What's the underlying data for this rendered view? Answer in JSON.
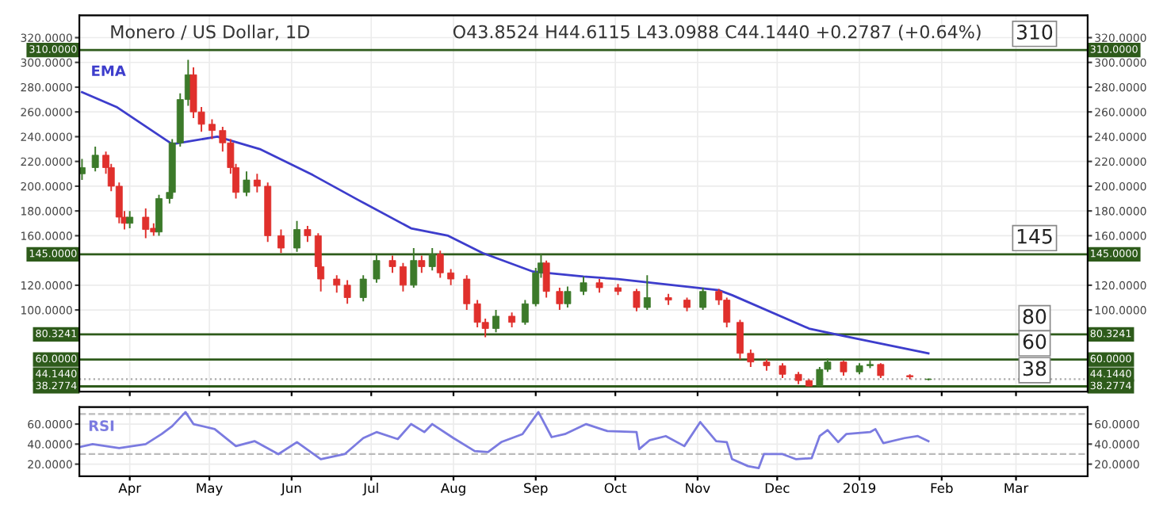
{
  "chart_data": [
    {
      "type": "candlestick",
      "title": "Monero / US Dollar, 1D",
      "subtitle": "O43.8524 H44.6115 L43.0988 C44.1440 +0.2787 (+0.64%)",
      "x": [
        "2018-03-14",
        "2018-03-19",
        "2018-03-23",
        "2018-03-25",
        "2018-03-28",
        "2018-03-30",
        "2018-04-01",
        "2018-04-07",
        "2018-04-10",
        "2018-04-12",
        "2018-04-16",
        "2018-04-17",
        "2018-04-20",
        "2018-04-23",
        "2018-04-25",
        "2018-04-28",
        "2018-05-02",
        "2018-05-06",
        "2018-05-09",
        "2018-05-11",
        "2018-05-15",
        "2018-05-19",
        "2018-05-23",
        "2018-05-28",
        "2018-06-03",
        "2018-06-07",
        "2018-06-11",
        "2018-06-12",
        "2018-06-18",
        "2018-06-22",
        "2018-06-28",
        "2018-07-03",
        "2018-07-09",
        "2018-07-13",
        "2018-07-17",
        "2018-07-20",
        "2018-07-24",
        "2018-07-27",
        "2018-07-31",
        "2018-08-06",
        "2018-08-10",
        "2018-08-13",
        "2018-08-17",
        "2018-08-23",
        "2018-08-28",
        "2018-09-01",
        "2018-09-03",
        "2018-09-05",
        "2018-09-10",
        "2018-09-13",
        "2018-09-19",
        "2018-09-25",
        "2018-10-02",
        "2018-10-09",
        "2018-10-13",
        "2018-10-21",
        "2018-10-28",
        "2018-11-03",
        "2018-11-09",
        "2018-11-12",
        "2018-11-17",
        "2018-11-21",
        "2018-11-27",
        "2018-12-03",
        "2018-12-09",
        "2018-12-13",
        "2018-12-17",
        "2018-12-20",
        "2018-12-26",
        "2019-01-01",
        "2019-01-05",
        "2019-01-09",
        "2019-01-20",
        "2019-01-27"
      ],
      "ohlc": [
        [
          210,
          222,
          205,
          215
        ],
        [
          215,
          232,
          212,
          225
        ],
        [
          225,
          228,
          210,
          215
        ],
        [
          215,
          218,
          196,
          200
        ],
        [
          200,
          203,
          170,
          175
        ],
        [
          175,
          180,
          165,
          170
        ],
        [
          170,
          180,
          166,
          175
        ],
        [
          175,
          182,
          158,
          165
        ],
        [
          166,
          170,
          160,
          163
        ],
        [
          163,
          193,
          160,
          190
        ],
        [
          190,
          200,
          186,
          195
        ],
        [
          195,
          238,
          192,
          235
        ],
        [
          235,
          275,
          232,
          270
        ],
        [
          270,
          302,
          265,
          290
        ],
        [
          290,
          296,
          255,
          260
        ],
        [
          260,
          264,
          244,
          250
        ],
        [
          250,
          254,
          238,
          245
        ],
        [
          245,
          248,
          228,
          235
        ],
        [
          235,
          238,
          210,
          215
        ],
        [
          215,
          218,
          190,
          195
        ],
        [
          195,
          212,
          192,
          205
        ],
        [
          205,
          210,
          195,
          200
        ],
        [
          200,
          203,
          155,
          160
        ],
        [
          160,
          165,
          146,
          150
        ],
        [
          150,
          172,
          147,
          165
        ],
        [
          165,
          168,
          155,
          160
        ],
        [
          160,
          162,
          130,
          135
        ],
        [
          135,
          138,
          115,
          125
        ],
        [
          125,
          128,
          114,
          120
        ],
        [
          120,
          124,
          105,
          110
        ],
        [
          110,
          128,
          107,
          125
        ],
        [
          125,
          145,
          122,
          140
        ],
        [
          140,
          144,
          130,
          135
        ],
        [
          135,
          138,
          115,
          120
        ],
        [
          120,
          150,
          118,
          140
        ],
        [
          140,
          144,
          130,
          135
        ],
        [
          135,
          150,
          132,
          145
        ],
        [
          145,
          148,
          126,
          130
        ],
        [
          130,
          133,
          120,
          125
        ],
        [
          125,
          128,
          100,
          105
        ],
        [
          105,
          108,
          86,
          90
        ],
        [
          90,
          93,
          78,
          85
        ],
        [
          85,
          100,
          82,
          95
        ],
        [
          95,
          98,
          86,
          90
        ],
        [
          90,
          108,
          88,
          105
        ],
        [
          105,
          134,
          103,
          130
        ],
        [
          130,
          145,
          126,
          138
        ],
        [
          138,
          140,
          110,
          115
        ],
        [
          115,
          118,
          100,
          105
        ],
        [
          105,
          119,
          102,
          115
        ],
        [
          115,
          127,
          112,
          122
        ],
        [
          122,
          125,
          114,
          118
        ],
        [
          118,
          121,
          112,
          115
        ],
        [
          115,
          117,
          99,
          102
        ],
        [
          102,
          128,
          100,
          110
        ],
        [
          110,
          113,
          104,
          108
        ],
        [
          108,
          110,
          99,
          102
        ],
        [
          102,
          118,
          100,
          115
        ],
        [
          115,
          117,
          104,
          108
        ],
        [
          108,
          110,
          86,
          90
        ],
        [
          90,
          92,
          60,
          65
        ],
        [
          65,
          68,
          54,
          58
        ],
        [
          58,
          60,
          51,
          55
        ],
        [
          55,
          57,
          45,
          48
        ],
        [
          48,
          50,
          40,
          43
        ],
        [
          43,
          44,
          38.3,
          38.5
        ],
        [
          38.5,
          54,
          38.5,
          52
        ],
        [
          52,
          61,
          50,
          58
        ],
        [
          58,
          59,
          47,
          50
        ],
        [
          50,
          57,
          48,
          55
        ],
        [
          55,
          59,
          53,
          56
        ],
        [
          56,
          57,
          45,
          47
        ],
        [
          47,
          48,
          44,
          46
        ],
        [
          43.8524,
          44.6115,
          43.0988,
          44.144
        ]
      ],
      "series": [
        {
          "name": "EMA",
          "type": "line",
          "color": "#3d3dcc",
          "x": [
            "2018-03-14",
            "2018-03-27",
            "2018-04-17",
            "2018-05-04",
            "2018-05-20",
            "2018-06-09",
            "2018-06-26",
            "2018-07-16",
            "2018-07-30",
            "2018-08-12",
            "2018-08-31",
            "2018-09-19",
            "2018-10-02",
            "2018-11-09",
            "2018-11-14",
            "2018-12-13",
            "2018-12-26",
            "2019-01-27"
          ],
          "values": [
            276,
            264,
            234,
            240,
            230,
            209,
            189,
            166,
            160,
            146,
            131,
            127,
            125,
            116,
            112,
            85,
            79,
            65
          ]
        }
      ],
      "xlim": [
        "2018-03-13",
        "2019-03-28"
      ],
      "xticks": [
        {
          "value": "2018-04-01",
          "label": null
        },
        {
          "value": "2018-05-01",
          "label": null
        },
        {
          "value": "2018-06-01",
          "label": null
        },
        {
          "value": "2018-07-01",
          "label": null
        },
        {
          "value": "2018-08-01",
          "label": null
        },
        {
          "value": "2018-09-01",
          "label": null
        },
        {
          "value": "2018-10-01",
          "label": null
        },
        {
          "value": "2018-11-01",
          "label": null
        },
        {
          "value": "2018-12-01",
          "label": null
        },
        {
          "value": "2019-01-01",
          "label": null
        },
        {
          "value": "2019-02-01",
          "label": null
        },
        {
          "value": "2019-03-01",
          "label": null
        }
      ],
      "ylim": [
        34,
        338
      ],
      "yticks": [
        {
          "value": 100,
          "label": "100.0000"
        },
        {
          "value": 120,
          "label": "120.0000"
        },
        {
          "value": 160,
          "label": "160.0000"
        },
        {
          "value": 180,
          "label": "180.0000"
        },
        {
          "value": 200,
          "label": "200.0000"
        },
        {
          "value": 220,
          "label": "220.0000"
        },
        {
          "value": 240,
          "label": "240.0000"
        },
        {
          "value": 260,
          "label": "260.0000"
        },
        {
          "value": 280,
          "label": "280.0000"
        },
        {
          "value": 300,
          "label": "300.0000"
        },
        {
          "value": 320,
          "label": "320.0000"
        }
      ],
      "y2lim": [
        34,
        338
      ],
      "y2ticks": [
        {
          "value": 100,
          "label": "100.0000"
        },
        {
          "value": 120,
          "label": "120.0000"
        },
        {
          "value": 160,
          "label": "160.0000"
        },
        {
          "value": 180,
          "label": "180.0000"
        },
        {
          "value": 200,
          "label": "200.0000"
        },
        {
          "value": 220,
          "label": "220.0000"
        },
        {
          "value": 240,
          "label": "240.0000"
        },
        {
          "value": 260,
          "label": "260.0000"
        },
        {
          "value": 280,
          "label": "280.0000"
        },
        {
          "value": 300,
          "label": "300.0000"
        },
        {
          "value": 320,
          "label": "320.0000"
        }
      ],
      "tick_labels": "y",
      "grid": true,
      "ref_lines": [
        {
          "axis": "y",
          "value": 310,
          "label": "310.0000",
          "color": "#2e5b1b",
          "line_style": "solid"
        },
        {
          "axis": "y",
          "value": 145,
          "label": "145.0000",
          "color": "#2e5b1b",
          "line_style": "solid"
        },
        {
          "axis": "y",
          "value": 80.3241,
          "label": "80.3241",
          "color": "#2e5b1b",
          "line_style": "solid"
        },
        {
          "axis": "y",
          "value": 60,
          "label": "60.0000",
          "color": "#2e5b1b",
          "line_style": "solid"
        },
        {
          "axis": "y",
          "value": 44.144,
          "label": "44.1440",
          "color": "#aaaaaa",
          "line_style": "dotted"
        },
        {
          "axis": "y",
          "value": 38.2774,
          "label": "38.2774",
          "color": "#2e5b1b",
          "line_style": "solid"
        }
      ],
      "annotations": [
        {
          "text": "310",
          "x": "2019-03-08",
          "y": 310
        },
        {
          "text": "145",
          "x": "2019-03-08",
          "y": 145
        },
        {
          "text": "80",
          "x": "2019-03-08",
          "y": 80.3241
        },
        {
          "text": "60",
          "x": "2019-03-08",
          "y": 60
        },
        {
          "text": "38",
          "x": "2019-03-08",
          "y": 38.2774
        }
      ]
    },
    {
      "type": "line",
      "series": [
        {
          "name": "RSI",
          "color": "#7b7be0",
          "x": [
            "2018-03-13",
            "2018-03-18",
            "2018-03-28",
            "2018-04-07",
            "2018-04-13",
            "2018-04-17",
            "2018-04-22",
            "2018-04-25",
            "2018-05-03",
            "2018-05-11",
            "2018-05-18",
            "2018-05-27",
            "2018-06-03",
            "2018-06-12",
            "2018-06-21",
            "2018-06-28",
            "2018-07-03",
            "2018-07-11",
            "2018-07-16",
            "2018-07-21",
            "2018-07-24",
            "2018-08-01",
            "2018-08-09",
            "2018-08-14",
            "2018-08-19",
            "2018-08-27",
            "2018-09-02",
            "2018-09-07",
            "2018-09-12",
            "2018-09-20",
            "2018-09-28",
            "2018-10-09",
            "2018-10-10",
            "2018-10-14",
            "2018-10-20",
            "2018-10-27",
            "2018-11-02",
            "2018-11-08",
            "2018-11-12",
            "2018-11-14",
            "2018-11-20",
            "2018-11-24",
            "2018-11-26",
            "2018-12-03",
            "2018-12-08",
            "2018-12-14",
            "2018-12-17",
            "2018-12-20",
            "2018-12-24",
            "2018-12-27",
            "2019-01-05",
            "2019-01-07",
            "2019-01-10",
            "2019-01-18",
            "2019-01-23",
            "2019-01-27"
          ],
          "values": [
            37,
            40,
            36,
            40,
            50,
            58,
            72,
            60,
            55,
            38,
            43,
            30,
            42,
            25,
            30,
            46,
            52,
            45,
            60,
            52,
            60,
            46,
            33,
            32,
            42,
            50,
            72,
            47,
            50,
            60,
            53,
            52,
            35,
            44,
            48,
            38,
            62,
            43,
            42,
            25,
            18,
            16,
            30,
            30,
            25,
            26,
            48,
            54,
            42,
            50,
            52,
            55,
            41,
            46,
            48,
            43
          ]
        }
      ],
      "xlim": [
        "2018-03-13",
        "2019-03-28"
      ],
      "xticks": [
        {
          "value": "2018-04-01",
          "label": "Apr"
        },
        {
          "value": "2018-05-01",
          "label": "May"
        },
        {
          "value": "2018-06-01",
          "label": "Jun"
        },
        {
          "value": "2018-07-01",
          "label": "Jul"
        },
        {
          "value": "2018-08-01",
          "label": "Aug"
        },
        {
          "value": "2018-09-01",
          "label": "Sep"
        },
        {
          "value": "2018-10-01",
          "label": "Oct"
        },
        {
          "value": "2018-11-01",
          "label": "Nov"
        },
        {
          "value": "2018-12-01",
          "label": "Dec"
        },
        {
          "value": "2019-01-01",
          "label": "2019"
        },
        {
          "value": "2019-02-01",
          "label": "Feb"
        },
        {
          "value": "2019-03-01",
          "label": "Mar"
        }
      ],
      "ylim": [
        8,
        77
      ],
      "yticks": [
        {
          "value": 20,
          "label": "20.0000"
        },
        {
          "value": 40,
          "label": "40.0000"
        },
        {
          "value": 60,
          "label": "60.0000"
        }
      ],
      "y2lim": [
        8,
        77
      ],
      "y2ticks": [
        {
          "value": 20,
          "label": "20.0000"
        },
        {
          "value": 40,
          "label": "40.0000"
        },
        {
          "value": 60,
          "label": "60.0000"
        }
      ],
      "grid": true,
      "ref_lines": [
        {
          "axis": "y",
          "value": 70,
          "color": "#bbbbbb",
          "line_style": "dashed"
        },
        {
          "axis": "y",
          "value": 30,
          "color": "#bbbbbb",
          "line_style": "dashed"
        }
      ]
    }
  ]
}
